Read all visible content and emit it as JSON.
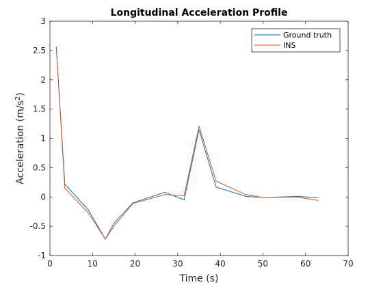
{
  "chart_data": {
    "type": "line",
    "title": "Longitudinal Acceleration Profile",
    "xlabel": "Time (s)",
    "ylabel_base": "Acceleration (m/s",
    "ylabel_sup": "2",
    "ylabel_close": ")",
    "xlim": [
      0,
      70
    ],
    "ylim": [
      -1,
      3
    ],
    "xticks": [
      0,
      10,
      20,
      30,
      40,
      50,
      60,
      70
    ],
    "yticks": [
      -1,
      -0.5,
      0,
      0.5,
      1,
      1.5,
      2,
      2.5,
      3
    ],
    "grid": false,
    "legend_position": "top-right",
    "series": [
      {
        "name": "Ground truth",
        "color": "#0072BD",
        "x": [
          1.5,
          3.5,
          9,
          13,
          15,
          19.5,
          27,
          31.5,
          35,
          39,
          46,
          50,
          58,
          63
        ],
        "y": [
          2.55,
          0.22,
          -0.22,
          -0.72,
          -0.45,
          -0.1,
          0.08,
          -0.05,
          1.15,
          0.17,
          0.01,
          -0.01,
          0.01,
          -0.01
        ]
      },
      {
        "name": "INS",
        "color": "#D95319",
        "x": [
          1.5,
          3.5,
          9,
          13,
          15,
          19.5,
          27,
          31.5,
          35,
          39,
          46,
          50,
          58,
          63
        ],
        "y": [
          2.57,
          0.15,
          -0.27,
          -0.72,
          -0.5,
          -0.11,
          0.04,
          0.02,
          1.21,
          0.27,
          0.04,
          -0.01,
          0.0,
          -0.06
        ]
      }
    ]
  }
}
